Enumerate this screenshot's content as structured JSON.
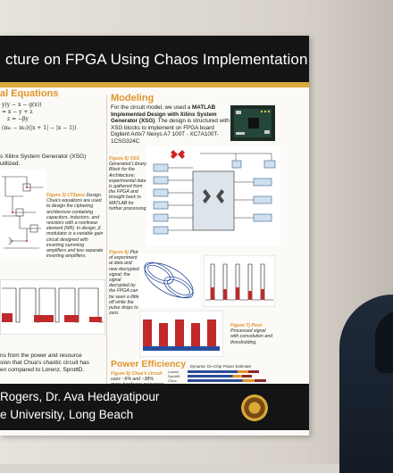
{
  "title": "cture on FPGA Using Chaos Implementation",
  "left_column": {
    "heading": "al Equations",
    "equations": [
      "y(y − x − g(x))",
      "= x − y + z",
      "z = −βy",
      "(m₀ − m₁)(|x + 1| − |x − 1|)"
    ],
    "xsg_line1": "s Xilinx System Generator (XSG)",
    "xsg_line2": "utilized.",
    "fig_label": "Figure 3) LTSpice",
    "fig_caption": "Design. Chua's equations are used to design the ciphering architecture containing capacitors, inductors, and resistors with a nonlinear element (NR). In design, β modulator is a variable gain circuit designed with inverting summing amplifiers and two separate inverting amplifiers.",
    "footer_line1": "ns from the power and resource",
    "footer_line2": "sion that Chua's chaotic circuit has",
    "footer_line3": "en compared to Lorenz, SprottD."
  },
  "modeling": {
    "heading": "Modeling",
    "text_a": "For the circuit model, we used a ",
    "text_b": "MATLAB Implemented Design with Xilinx System Generator (XSG)",
    "text_c": ". The design is structured with XSG blocks to implement on FPGA board Digilent Artix7 Nexys A7 100T - XC7A100T-1CSG324C",
    "fig_xsg_label": "Figure 5) XSG",
    "fig_xsg_caption": "Generated Library Block for the Architecture; experimental data is gathered from the FPGA and brought back to MATLAB for further processing",
    "fig6_label": "Figure 6)",
    "fig6_caption": "Plot of experiment al data and new decrypted signal; the signal decrypted by the FPGA can be seen a little off while the pulse drops to zero.",
    "fig7_label": "Figure 7) Post-",
    "fig7_caption": "Processed signal with convolution and thresholding."
  },
  "power": {
    "heading": "Power Efficiency",
    "fig_label": "Figure 8) Chua's circuit",
    "fig_caption": "uses ~9% and ~38% more hardware resources compared to Lorenz and SprottD respectively.",
    "chart_title": "Dynamic On-Chip Power Estimate",
    "rows": [
      "Lorenz",
      "SprottD",
      "Chua"
    ]
  },
  "footer": {
    "authors": "Rogers, Dr. Ava Hedayatipour",
    "university": "e University, Long Beach"
  },
  "colors": {
    "accent": "#e0952b",
    "banner": "#141414",
    "gold": "#d9a93a"
  }
}
